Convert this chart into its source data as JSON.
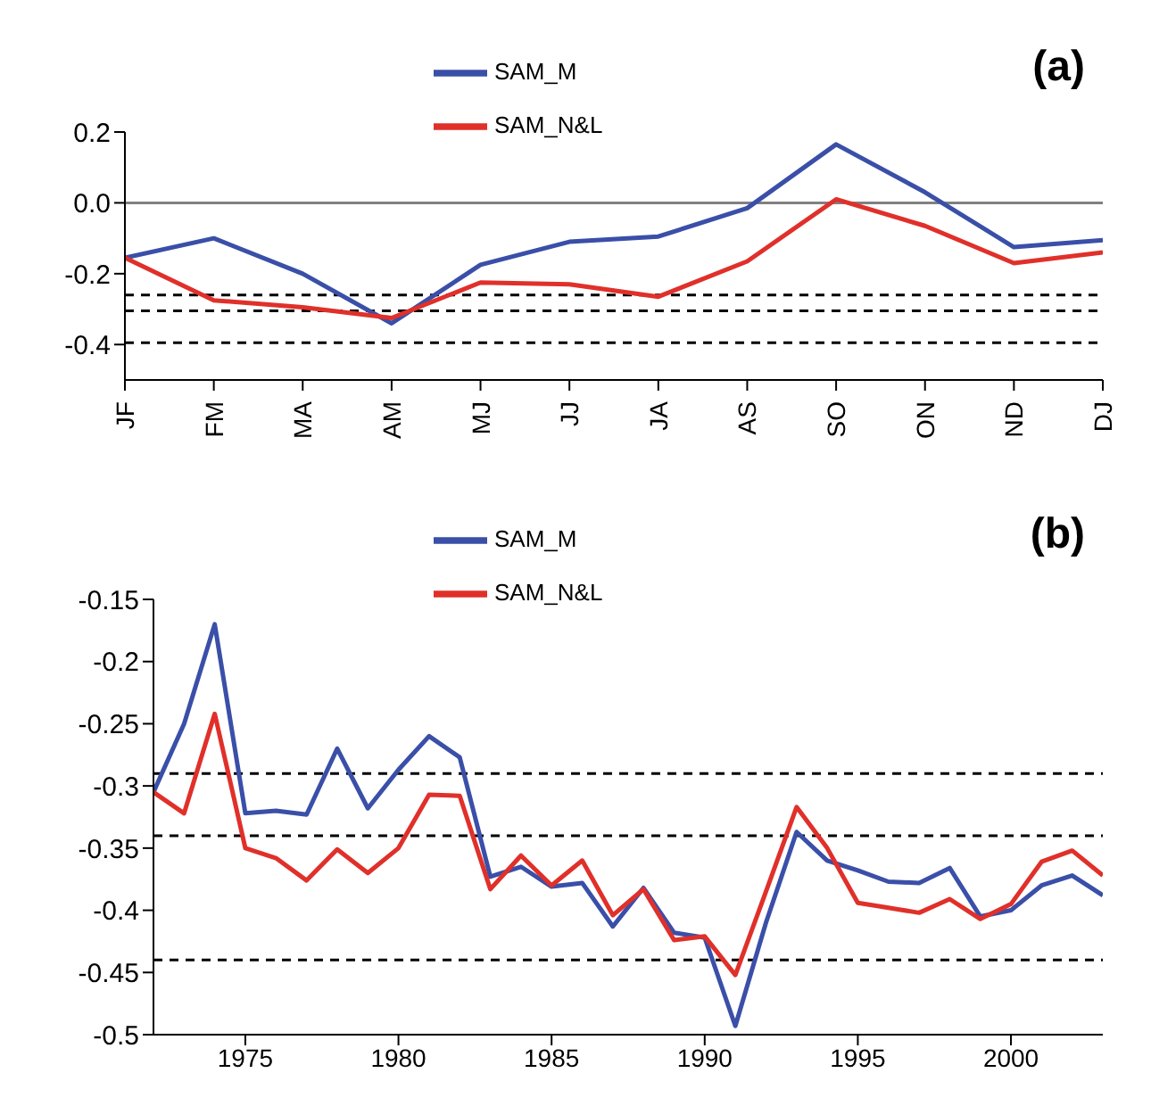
{
  "chart_data": [
    {
      "type": "line",
      "categories": [
        "JF",
        "FM",
        "MA",
        "AM",
        "MJ",
        "JJ",
        "JA",
        "AS",
        "SO",
        "ON",
        "ND",
        "DJ"
      ],
      "series": [
        {
          "name": "SAM_M",
          "color": "#3a4fa8",
          "values": [
            -0.155,
            -0.1,
            -0.2,
            -0.34,
            -0.175,
            -0.11,
            -0.095,
            -0.015,
            0.165,
            0.03,
            -0.125,
            -0.105
          ]
        },
        {
          "name": "SAM_N&L",
          "color": "#e0302a",
          "values": [
            -0.155,
            -0.275,
            -0.295,
            -0.325,
            -0.225,
            -0.23,
            -0.265,
            -0.165,
            0.01,
            -0.065,
            -0.17,
            -0.14
          ]
        }
      ],
      "ylim": [
        -0.5,
        0.2
      ],
      "yticks": [
        0.2,
        {
          "value": 0,
          "label": "0.0"
        },
        -0.2,
        -0.4
      ],
      "ref_lines": [
        {
          "axis": "y",
          "value": 0,
          "color": "#808080",
          "line_style": "solid"
        },
        {
          "axis": "y",
          "value": -0.26,
          "color": "#000000",
          "line_style": "dashed"
        },
        {
          "axis": "y",
          "value": -0.305,
          "color": "#000000",
          "line_style": "dashed"
        },
        {
          "axis": "y",
          "value": -0.395,
          "color": "#000000",
          "line_style": "dashed"
        }
      ],
      "annotations": [
        "(a)"
      ],
      "legend": "top",
      "grid": false,
      "marker": "none",
      "line_style": "solid"
    },
    {
      "type": "line",
      "x": [
        1972,
        1973,
        1974,
        1975,
        1976,
        1977,
        1978,
        1979,
        1980,
        1981,
        1982,
        1983,
        1984,
        1985,
        1986,
        1987,
        1988,
        1989,
        1990,
        1991,
        1992,
        1993,
        1994,
        1995,
        1996,
        1997,
        1998,
        1999,
        2000,
        2001,
        2002,
        2003
      ],
      "series": [
        {
          "name": "SAM_M",
          "color": "#3a4fa8",
          "values": [
            -0.305,
            -0.25,
            -0.17,
            -0.322,
            -0.32,
            -0.323,
            -0.27,
            -0.318,
            -0.287,
            -0.26,
            -0.277,
            -0.373,
            -0.365,
            -0.381,
            -0.378,
            -0.413,
            -0.382,
            -0.418,
            -0.422,
            -0.493,
            -0.41,
            -0.337,
            -0.36,
            -0.368,
            -0.377,
            -0.378,
            -0.366,
            -0.405,
            -0.4,
            -0.38,
            -0.372,
            -0.388
          ]
        },
        {
          "name": "SAM_N&L",
          "color": "#e0302a",
          "values": [
            -0.305,
            -0.322,
            -0.242,
            -0.35,
            -0.358,
            -0.376,
            -0.351,
            -0.37,
            -0.35,
            -0.307,
            -0.308,
            -0.383,
            -0.356,
            -0.38,
            -0.36,
            -0.404,
            -0.383,
            -0.424,
            -0.421,
            -0.452,
            -0.385,
            -0.317,
            -0.35,
            -0.394,
            -0.398,
            -0.402,
            -0.391,
            -0.407,
            -0.395,
            -0.361,
            -0.352,
            -0.372
          ]
        }
      ],
      "xlim": [
        1972,
        2003
      ],
      "xticks": [
        1975,
        1980,
        1985,
        1990,
        1995,
        2000
      ],
      "ylim": [
        -0.5,
        -0.15
      ],
      "yticks": [
        -0.15,
        -0.2,
        -0.25,
        -0.3,
        -0.35,
        -0.4,
        -0.45,
        -0.5
      ],
      "ref_lines": [
        {
          "axis": "y",
          "value": -0.29,
          "color": "#000000",
          "line_style": "dashed"
        },
        {
          "axis": "y",
          "value": -0.34,
          "color": "#000000",
          "line_style": "dashed"
        },
        {
          "axis": "y",
          "value": -0.44,
          "color": "#000000",
          "line_style": "dashed"
        }
      ],
      "annotations": [
        "(b)"
      ],
      "legend": "top",
      "grid": false,
      "marker": "none",
      "line_style": "solid"
    }
  ]
}
